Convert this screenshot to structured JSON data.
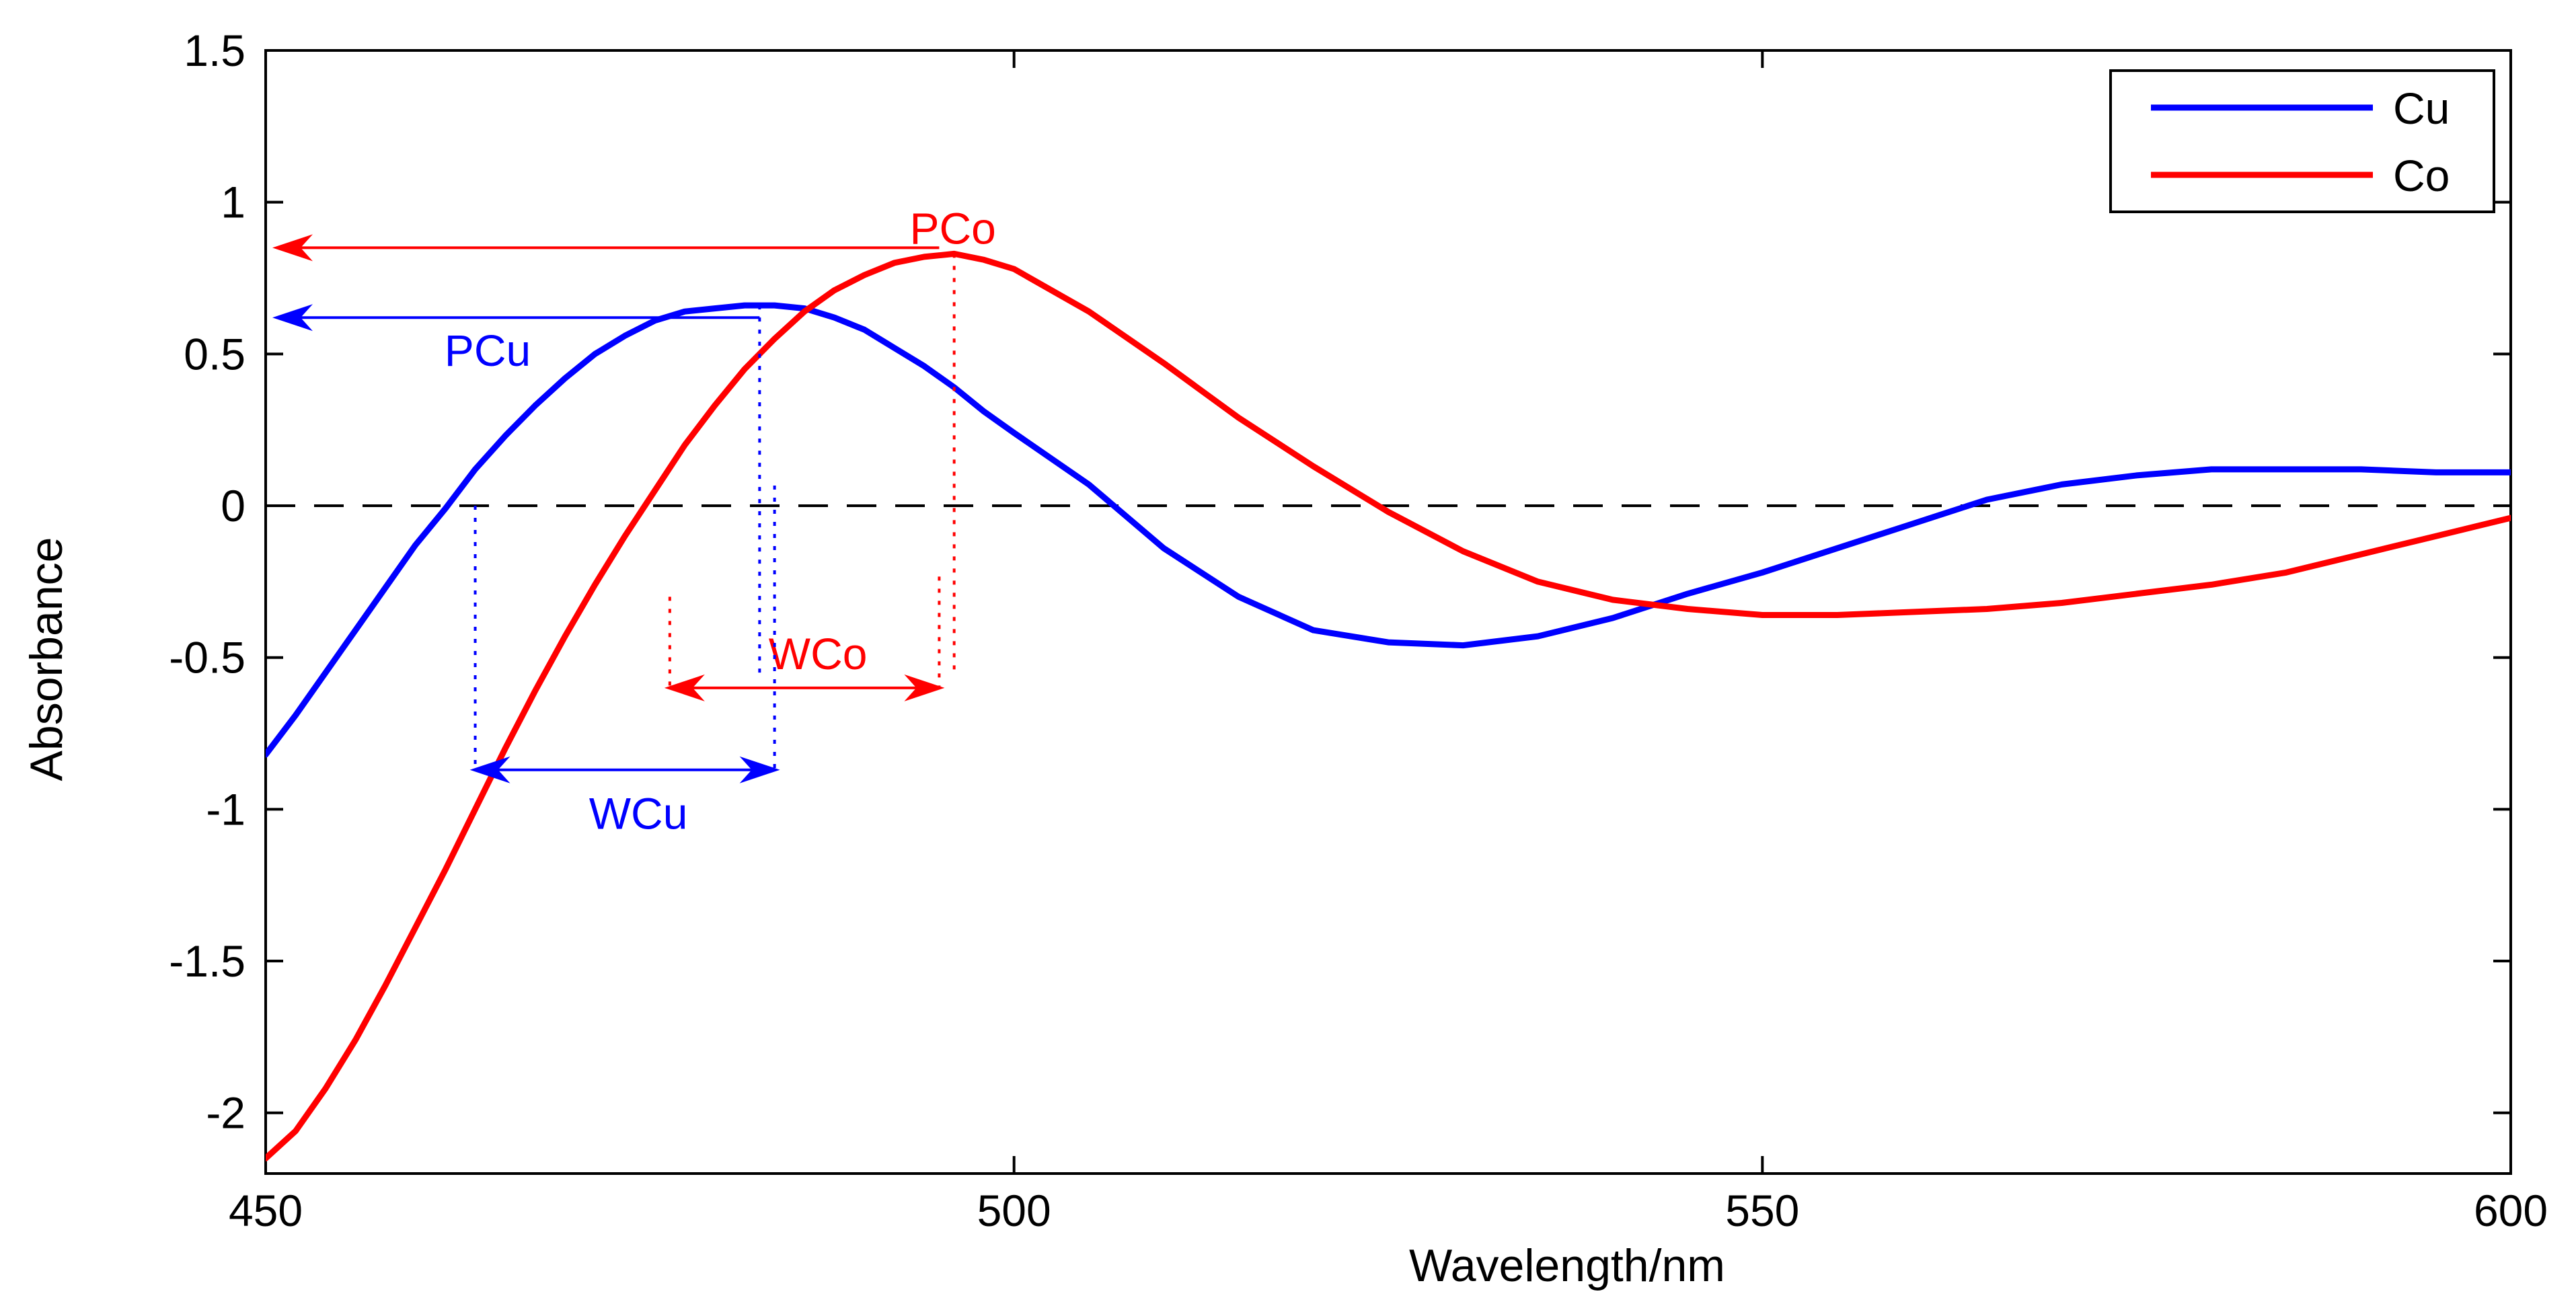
{
  "chart_data": {
    "type": "line",
    "title": "",
    "xlabel": "Wavelength/nm",
    "ylabel": "Absorbance",
    "xlim": [
      450,
      600
    ],
    "ylim": [
      -2.2,
      1.5
    ],
    "xticks": [
      450,
      500,
      550,
      600
    ],
    "xtick_labels": [
      "450",
      "500",
      "550",
      "600"
    ],
    "yticks": [
      1.5,
      1,
      0.5,
      0,
      -0.5,
      -1,
      -1.5,
      -2
    ],
    "ytick_labels": [
      "1.5",
      "1",
      "0.5",
      "0",
      "-0.5",
      "-1",
      "-1.5",
      "-2"
    ],
    "grid": false,
    "zero_line": {
      "y": 0,
      "style": "dashed",
      "color": "#000000"
    },
    "legend": {
      "placement": "top-right"
    },
    "series": [
      {
        "name": "Cu",
        "color": "#0000ff",
        "x": [
          450,
          452,
          454,
          456,
          458,
          460,
          462,
          464,
          466,
          468,
          470,
          472,
          474,
          476,
          478,
          480,
          482,
          484,
          486,
          488,
          490,
          492,
          494,
          496,
          498,
          500,
          505,
          510,
          515,
          520,
          525,
          530,
          535,
          540,
          545,
          550,
          555,
          560,
          565,
          570,
          575,
          580,
          585,
          590,
          595,
          600
        ],
        "y": [
          -0.82,
          -0.69,
          -0.55,
          -0.41,
          -0.27,
          -0.13,
          -0.01,
          0.12,
          0.23,
          0.33,
          0.42,
          0.5,
          0.56,
          0.61,
          0.64,
          0.65,
          0.66,
          0.66,
          0.65,
          0.62,
          0.58,
          0.52,
          0.46,
          0.39,
          0.31,
          0.24,
          0.07,
          -0.14,
          -0.3,
          -0.41,
          -0.45,
          -0.46,
          -0.43,
          -0.37,
          -0.29,
          -0.22,
          -0.14,
          -0.06,
          0.02,
          0.07,
          0.1,
          0.12,
          0.12,
          0.12,
          0.11,
          0.11
        ]
      },
      {
        "name": "Co",
        "color": "#ff0000",
        "x": [
          450,
          452,
          454,
          456,
          458,
          460,
          462,
          464,
          466,
          468,
          470,
          472,
          474,
          476,
          478,
          480,
          482,
          484,
          486,
          488,
          490,
          492,
          494,
          496,
          498,
          500,
          505,
          510,
          515,
          520,
          525,
          530,
          535,
          540,
          545,
          550,
          555,
          560,
          565,
          570,
          575,
          580,
          585,
          590,
          595,
          600
        ],
        "y": [
          -2.15,
          -2.06,
          -1.92,
          -1.76,
          -1.58,
          -1.39,
          -1.2,
          -1.0,
          -0.8,
          -0.61,
          -0.43,
          -0.26,
          -0.1,
          0.05,
          0.2,
          0.33,
          0.45,
          0.55,
          0.64,
          0.71,
          0.76,
          0.8,
          0.82,
          0.83,
          0.81,
          0.78,
          0.64,
          0.47,
          0.29,
          0.13,
          -0.02,
          -0.15,
          -0.25,
          -0.31,
          -0.34,
          -0.36,
          -0.36,
          -0.35,
          -0.34,
          -0.32,
          -0.29,
          -0.26,
          -0.22,
          -0.16,
          -0.1,
          -0.04
        ]
      }
    ],
    "annotations": [
      {
        "label": "PCo",
        "color": "#ff0000",
        "kind": "peak",
        "x": 496,
        "y": 0.83,
        "x_from": 495,
        "x_to": 450,
        "y_arrow": 0.85
      },
      {
        "label": "PCu",
        "color": "#0000ff",
        "kind": "peak",
        "x": 483,
        "y": 0.66,
        "x_from": 483,
        "x_to": 450,
        "y_arrow": 0.62
      },
      {
        "label": "WCo",
        "color": "#ff0000",
        "kind": "width",
        "x_start": 477,
        "x_end": 495,
        "y": -0.6,
        "y_top": -0.3
      },
      {
        "label": "WCu",
        "color": "#0000ff",
        "kind": "width",
        "x_start": 464,
        "x_end": 484,
        "y": -0.87,
        "y_top": 0.0
      }
    ]
  }
}
